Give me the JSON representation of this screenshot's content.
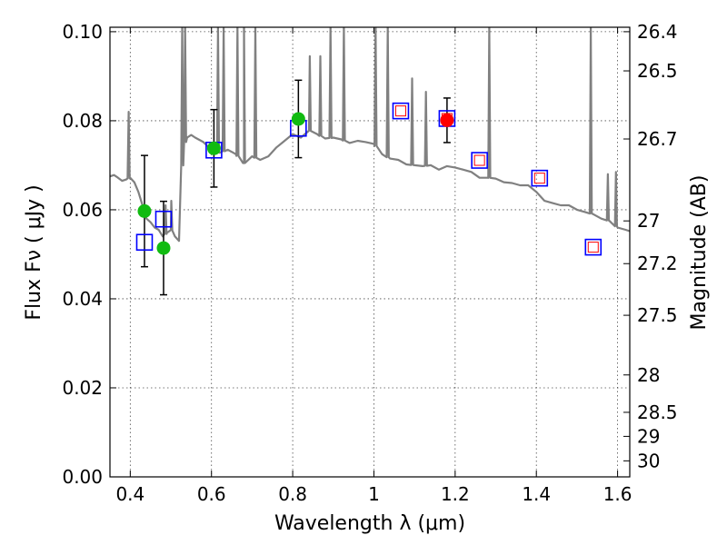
{
  "chart_data": {
    "type": "scatter",
    "title": "",
    "xlabel": "Wavelength  λ (μm)",
    "ylabel": "Flux  Fν  ( μJy )",
    "ylabel_right": "Magnitude (AB)",
    "xlim": [
      0.35,
      1.63
    ],
    "ylim": [
      0.0,
      0.101
    ],
    "grid": true,
    "x_ticks": [
      0.4,
      0.6,
      0.8,
      1.0,
      1.2,
      1.4,
      1.6
    ],
    "x_tick_labels": [
      "0.4",
      "0.6",
      "0.8",
      "1",
      "1.2",
      "1.4",
      "1.6"
    ],
    "y_ticks": [
      0.0,
      0.02,
      0.04,
      0.06,
      0.08,
      0.1
    ],
    "y_tick_labels": [
      "0.00",
      "0.02",
      "0.04",
      "0.06",
      "0.08",
      "0.10"
    ],
    "mag_ticks": [
      {
        "label": "26.4",
        "flux": 0.1
      },
      {
        "label": "26.5",
        "flux": 0.0912
      },
      {
        "label": "26.7",
        "flux": 0.0759
      },
      {
        "label": "27",
        "flux": 0.0575
      },
      {
        "label": "27.2",
        "flux": 0.0479
      },
      {
        "label": "27.5",
        "flux": 0.0363
      },
      {
        "label": "28",
        "flux": 0.0229
      },
      {
        "label": "28.5",
        "flux": 0.0145
      },
      {
        "label": "29",
        "flux": 0.0091
      },
      {
        "label": "30",
        "flux": 0.0036
      }
    ],
    "colors": {
      "sed": "#808080",
      "observed": "#11bb11",
      "observed_ir": "#ff0000",
      "model_box": "#0000ff",
      "model_inner": "#ff0000"
    },
    "series": [
      {
        "name": "observed",
        "points": [
          {
            "x": 0.435,
            "y": 0.0597,
            "err": 0.0125
          },
          {
            "x": 0.482,
            "y": 0.0514,
            "err": 0.0105
          },
          {
            "x": 0.606,
            "y": 0.0738,
            "err": 0.0087
          },
          {
            "x": 0.814,
            "y": 0.0804,
            "err": 0.0087
          }
        ]
      },
      {
        "name": "observed_ir",
        "points": [
          {
            "x": 1.18,
            "y": 0.0801,
            "err": 0.005
          }
        ]
      },
      {
        "name": "model_bandpass",
        "points": [
          {
            "x": 0.435,
            "y": 0.0527,
            "inner": false
          },
          {
            "x": 0.482,
            "y": 0.0579,
            "inner": false
          },
          {
            "x": 0.606,
            "y": 0.0734,
            "inner": false
          },
          {
            "x": 0.814,
            "y": 0.0783,
            "inner": false
          },
          {
            "x": 1.066,
            "y": 0.0822,
            "inner": true
          },
          {
            "x": 1.18,
            "y": 0.0805,
            "inner": true
          },
          {
            "x": 1.26,
            "y": 0.0711,
            "inner": true
          },
          {
            "x": 1.408,
            "y": 0.0671,
            "inner": true
          },
          {
            "x": 1.54,
            "y": 0.0516,
            "inner": true
          }
        ]
      }
    ],
    "sed_spectrum": {
      "name": "model SED",
      "x": [
        0.35,
        0.36,
        0.37,
        0.38,
        0.39,
        0.4,
        0.41,
        0.42,
        0.43,
        0.44,
        0.45,
        0.46,
        0.47,
        0.48,
        0.49,
        0.5,
        0.51,
        0.52,
        0.53,
        0.54,
        0.55,
        0.56,
        0.58,
        0.6,
        0.62,
        0.64,
        0.66,
        0.68,
        0.7,
        0.72,
        0.74,
        0.76,
        0.78,
        0.8,
        0.82,
        0.84,
        0.86,
        0.88,
        0.9,
        0.92,
        0.94,
        0.96,
        0.98,
        1.0,
        1.02,
        1.04,
        1.06,
        1.08,
        1.1,
        1.12,
        1.14,
        1.16,
        1.18,
        1.2,
        1.22,
        1.24,
        1.26,
        1.28,
        1.3,
        1.32,
        1.34,
        1.36,
        1.38,
        1.4,
        1.42,
        1.44,
        1.46,
        1.48,
        1.5,
        1.52,
        1.54,
        1.56,
        1.58,
        1.6,
        1.62,
        1.63
      ],
      "y": [
        0.0675,
        0.0678,
        0.0672,
        0.0665,
        0.0668,
        0.0672,
        0.0662,
        0.064,
        0.061,
        0.058,
        0.0572,
        0.056,
        0.0555,
        0.054,
        0.0548,
        0.0555,
        0.054,
        0.053,
        0.0742,
        0.0762,
        0.0768,
        0.0762,
        0.0752,
        0.0735,
        0.0728,
        0.0735,
        0.0725,
        0.0705,
        0.072,
        0.0712,
        0.072,
        0.074,
        0.0755,
        0.077,
        0.0762,
        0.0778,
        0.077,
        0.076,
        0.0762,
        0.0758,
        0.075,
        0.0755,
        0.0752,
        0.0748,
        0.0725,
        0.0715,
        0.0712,
        0.0702,
        0.07,
        0.0698,
        0.07,
        0.069,
        0.0698,
        0.0695,
        0.069,
        0.0685,
        0.0672,
        0.0672,
        0.067,
        0.0662,
        0.066,
        0.0655,
        0.0655,
        0.064,
        0.062,
        0.0615,
        0.061,
        0.061,
        0.06,
        0.0595,
        0.059,
        0.058,
        0.0575,
        0.056,
        0.0555,
        0.0552
      ],
      "emission_lines": [
        {
          "x": 0.396,
          "peak": 0.082
        },
        {
          "x": 0.487,
          "peak": 0.061
        },
        {
          "x": 0.501,
          "peak": 0.062
        },
        {
          "x": 0.528,
          "peak": 0.101
        },
        {
          "x": 0.535,
          "peak": 0.101
        },
        {
          "x": 0.616,
          "peak": 0.101
        },
        {
          "x": 0.63,
          "peak": 0.101
        },
        {
          "x": 0.664,
          "peak": 0.101
        },
        {
          "x": 0.68,
          "peak": 0.101
        },
        {
          "x": 0.708,
          "peak": 0.101
        },
        {
          "x": 0.842,
          "peak": 0.0945
        },
        {
          "x": 0.868,
          "peak": 0.0945
        },
        {
          "x": 0.893,
          "peak": 0.101
        },
        {
          "x": 0.926,
          "peak": 0.101
        },
        {
          "x": 1.004,
          "peak": 0.101
        },
        {
          "x": 1.034,
          "peak": 0.101
        },
        {
          "x": 1.094,
          "peak": 0.0895
        },
        {
          "x": 1.128,
          "peak": 0.0865
        },
        {
          "x": 1.284,
          "peak": 0.101
        },
        {
          "x": 1.534,
          "peak": 0.101
        },
        {
          "x": 1.576,
          "peak": 0.068
        },
        {
          "x": 1.596,
          "peak": 0.0685
        }
      ]
    }
  }
}
